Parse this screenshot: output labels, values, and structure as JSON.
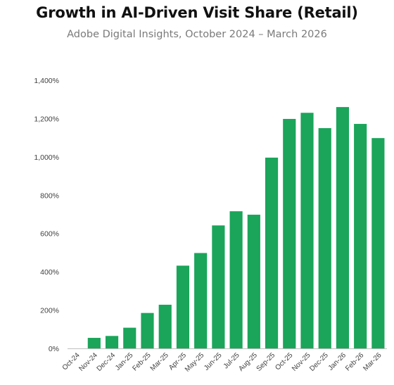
{
  "header": {
    "title": "Growth in AI-Driven Visit Share (Retail)",
    "subtitle": "Adobe Digital Insights, October 2024 – March 2026"
  },
  "colors": {
    "bar": "#1aa55a",
    "axis": "#bfbfbf",
    "text": "#404040"
  },
  "chart_data": {
    "type": "bar",
    "title": "Growth in AI-Driven Visit Share (Retail)",
    "subtitle": "Adobe Digital Insights, October 2024 – March 2026",
    "xlabel": "",
    "ylabel": "",
    "ylim": [
      0,
      1400
    ],
    "yticks": [
      0,
      200,
      400,
      600,
      800,
      1000,
      1200,
      1400
    ],
    "ytick_labels": [
      "0%",
      "200%",
      "400%",
      "600%",
      "800%",
      "1,000%",
      "1,200%",
      "1,400%"
    ],
    "grid": false,
    "legend": "none",
    "categories": [
      "Oct-24",
      "Nov-24",
      "Dec-24",
      "Jan-25",
      "Feb-25",
      "Mar-25",
      "Apr-25",
      "May-25",
      "Jun-25",
      "Jul-25",
      "Aug-25",
      "Sep-25",
      "Oct-25",
      "Nov-25",
      "Dec-25",
      "Jan-26",
      "Feb-26",
      "Mar-26"
    ],
    "values": [
      0,
      55,
      65,
      108,
      185,
      228,
      432,
      498,
      642,
      716,
      698,
      996,
      1198,
      1230,
      1150,
      1260,
      1172,
      1098
    ]
  }
}
